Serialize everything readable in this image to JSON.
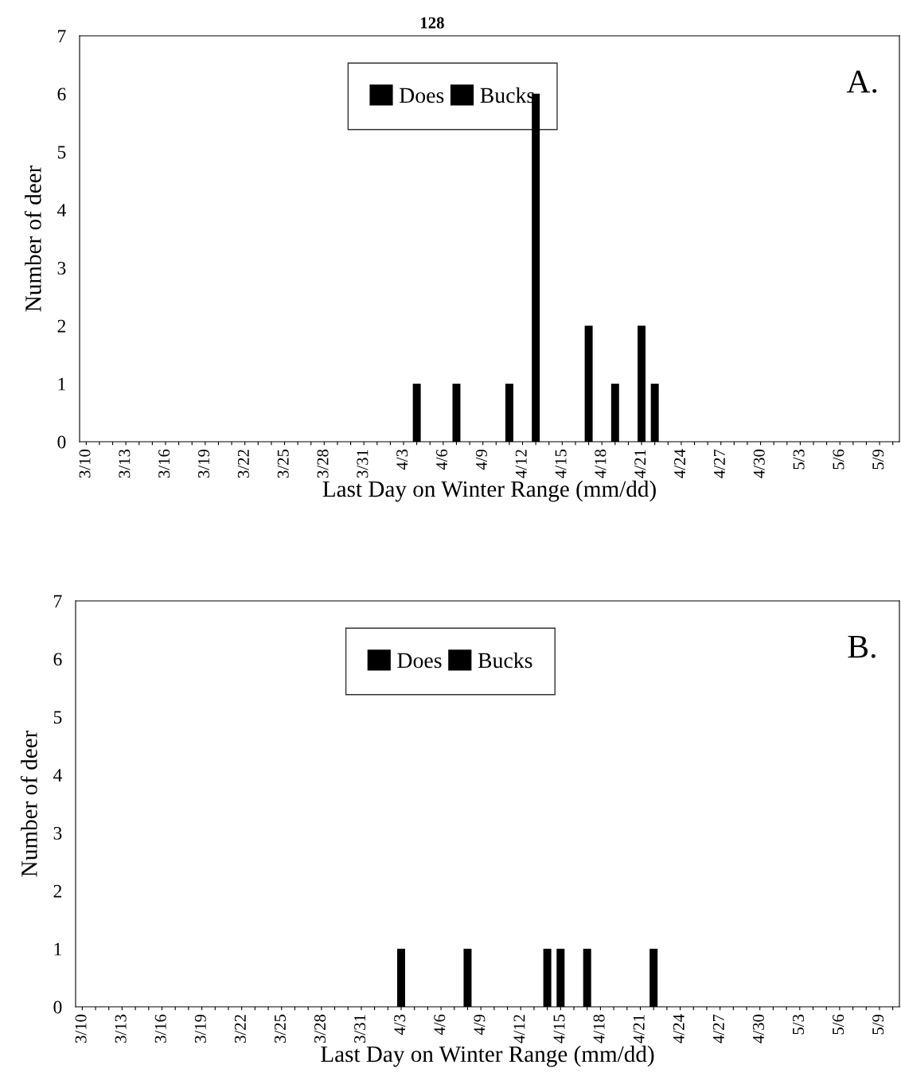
{
  "chart_data": [
    {
      "type": "bar",
      "xlabel": "Last Day on Winter Range (mm/dd)",
      "ylabel": "Number of deer",
      "annotations": [
        "A.",
        "128"
      ],
      "categories": [
        "3/10",
        null,
        null,
        "3/13",
        null,
        null,
        "3/16",
        null,
        null,
        "3/19",
        null,
        null,
        "3/22",
        null,
        null,
        "3/25",
        null,
        null,
        "3/28",
        null,
        null,
        "3/31",
        null,
        null,
        "4/3",
        null,
        null,
        "4/6",
        null,
        null,
        "4/9",
        null,
        null,
        "4/12",
        null,
        null,
        "4/15",
        null,
        null,
        "4/18",
        null,
        null,
        "4/21",
        null,
        null,
        "4/24",
        null,
        null,
        "4/27",
        null,
        null,
        "4/30",
        null,
        null,
        "5/3",
        null,
        null,
        "5/6",
        null,
        null,
        "5/9",
        null
      ],
      "series": [
        {
          "name": "Does",
          "color": "#000000",
          "values": [
            0,
            0,
            0,
            0,
            0,
            0,
            0,
            0,
            0,
            0,
            0,
            0,
            0,
            0,
            0,
            0,
            0,
            0,
            0,
            0,
            0,
            0,
            0,
            0,
            0,
            1,
            0,
            0,
            1,
            0,
            0,
            0,
            1,
            0,
            6,
            0,
            0,
            0,
            2,
            0,
            1,
            0,
            2,
            1,
            0,
            0,
            0,
            0,
            0,
            0,
            0,
            0,
            0,
            0,
            0,
            0,
            0,
            0,
            0,
            0,
            0,
            0
          ]
        },
        {
          "name": "Bucks",
          "color": "#000000",
          "values": [
            null,
            null,
            null,
            null,
            null,
            null,
            null,
            null,
            null,
            null,
            null,
            null,
            null,
            null,
            null,
            null,
            null,
            null,
            null,
            null,
            null,
            null,
            null,
            null,
            null,
            null,
            null,
            null,
            null,
            null,
            null,
            null,
            null,
            null,
            null,
            null,
            null,
            null,
            null,
            null,
            null,
            null,
            null,
            null,
            null,
            null,
            null,
            null,
            null,
            null,
            null,
            null,
            null,
            null,
            null,
            null,
            null,
            null,
            null,
            null,
            null,
            null
          ]
        }
      ],
      "ylim": [
        0,
        7
      ],
      "yticks": [
        0,
        1,
        2,
        3,
        4,
        5,
        6,
        7
      ],
      "grid": false,
      "legend": "top"
    },
    {
      "type": "bar",
      "xlabel": "Last Day on Winter Range (mm/dd)",
      "ylabel": "Number of deer",
      "annotations": [
        "B."
      ],
      "categories": [
        "3/10",
        null,
        null,
        "3/13",
        null,
        null,
        "3/16",
        null,
        null,
        "3/19",
        null,
        null,
        "3/22",
        null,
        null,
        "3/25",
        null,
        null,
        "3/28",
        null,
        null,
        "3/31",
        null,
        null,
        "4/3",
        null,
        null,
        "4/6",
        null,
        null,
        "4/9",
        null,
        null,
        "4/12",
        null,
        null,
        "4/15",
        null,
        null,
        "4/18",
        null,
        null,
        "4/21",
        null,
        null,
        "4/24",
        null,
        null,
        "4/27",
        null,
        null,
        "4/30",
        null,
        null,
        "5/3",
        null,
        null,
        "5/6",
        null,
        null,
        "5/9",
        null
      ],
      "series": [
        {
          "name": "Does",
          "color": "#000000",
          "values": [
            0,
            0,
            0,
            0,
            0,
            0,
            0,
            0,
            0,
            0,
            0,
            0,
            0,
            0,
            0,
            0,
            0,
            0,
            0,
            0,
            0,
            0,
            0,
            0,
            1,
            0,
            0,
            0,
            0,
            1,
            0,
            0,
            0,
            0,
            0,
            1,
            1,
            0,
            1,
            0,
            0,
            0,
            0,
            1,
            0,
            0,
            0,
            0,
            0,
            0,
            0,
            0,
            0,
            0,
            0,
            0,
            0,
            0,
            0,
            0,
            0,
            0
          ]
        },
        {
          "name": "Bucks",
          "color": "#000000",
          "values": [
            null,
            null,
            null,
            null,
            null,
            null,
            null,
            null,
            null,
            null,
            null,
            null,
            null,
            null,
            null,
            null,
            null,
            null,
            null,
            null,
            null,
            null,
            null,
            null,
            null,
            null,
            null,
            null,
            null,
            null,
            null,
            null,
            null,
            null,
            null,
            null,
            null,
            null,
            null,
            null,
            null,
            null,
            null,
            null,
            null,
            null,
            null,
            null,
            null,
            null,
            null,
            null,
            null,
            null,
            null,
            null,
            null,
            null,
            null,
            null,
            null,
            null
          ]
        }
      ],
      "ylim": [
        0,
        7
      ],
      "yticks": [
        0,
        1,
        2,
        3,
        4,
        5,
        6,
        7
      ],
      "grid": false,
      "legend": "top"
    }
  ]
}
